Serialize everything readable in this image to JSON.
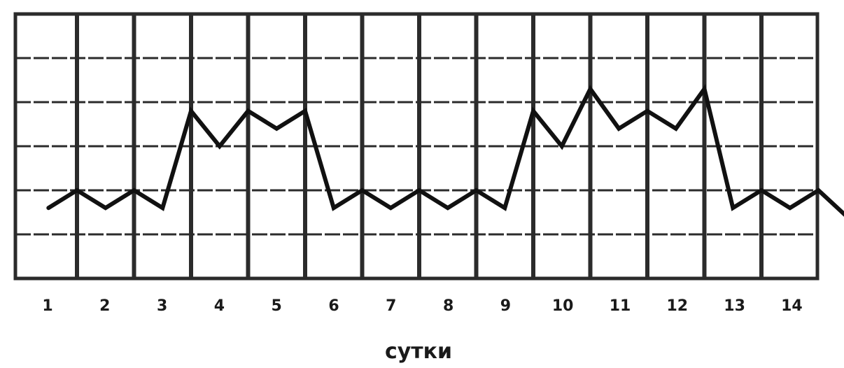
{
  "chart_data": {
    "type": "line",
    "title": "",
    "xlabel": "сутки",
    "ylabel": "",
    "x_tick_labels": [
      "1",
      "2",
      "3",
      "4",
      "5",
      "6",
      "7",
      "8",
      "9",
      "10",
      "11",
      "12",
      "13",
      "14"
    ],
    "x": [
      1.0,
      1.5,
      2.0,
      2.5,
      3.0,
      3.5,
      4.0,
      4.5,
      5.0,
      5.5,
      6.0,
      6.5,
      7.0,
      7.5,
      8.0,
      8.5,
      9.0,
      9.5,
      10.0,
      10.5,
      11.0,
      11.5,
      12.0,
      12.5,
      13.0,
      13.5,
      14.0,
      14.5,
      15.0
    ],
    "series": [
      {
        "values": [
          1.6,
          2.0,
          1.6,
          2.0,
          1.6,
          3.8,
          3.0,
          3.8,
          3.4,
          3.8,
          1.6,
          2.0,
          1.6,
          2.0,
          1.6,
          2.0,
          1.6,
          3.8,
          3.0,
          4.3,
          3.4,
          3.8,
          3.4,
          4.3,
          1.6,
          2.0,
          1.6,
          2.0,
          1.4
        ]
      }
    ],
    "xlim": [
      0.5,
      14.7
    ],
    "ylim": [
      0,
      6
    ],
    "grid": true,
    "colors": {
      "line": "#111111",
      "grid": "#2b2b2b",
      "background": "#ffffff"
    }
  }
}
